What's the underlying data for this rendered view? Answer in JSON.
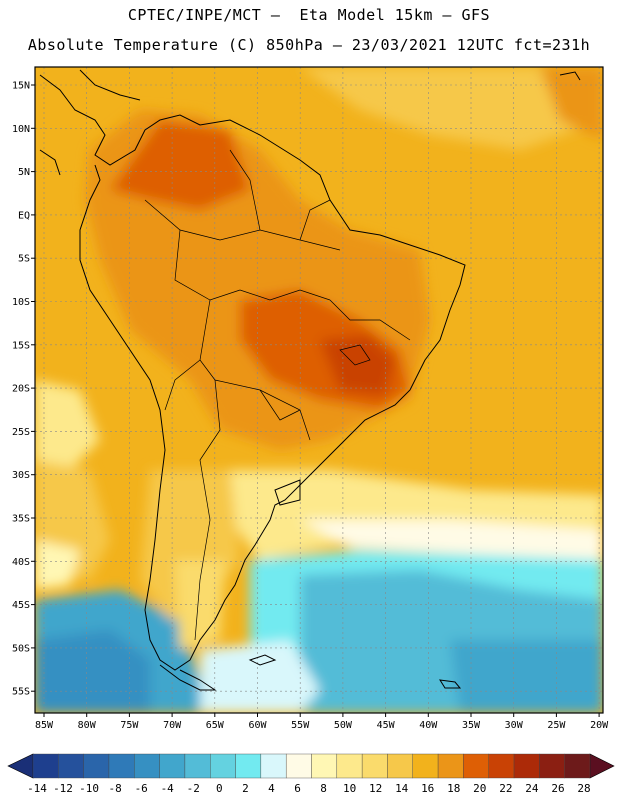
{
  "title_line1": "CPTEC/INPE/MCT –  Eta Model 15km – GFS",
  "title_line2": "Absolute Temperature (C) 850hPa – 23/03/2021 12UTC fct=231h",
  "lat_labels": [
    "15N",
    "10N",
    "5N",
    "EQ",
    "5S",
    "10S",
    "15S",
    "20S",
    "25S",
    "30S",
    "35S",
    "40S",
    "45S",
    "50S",
    "55S"
  ],
  "lon_labels": [
    "85W",
    "80W",
    "75W",
    "70W",
    "65W",
    "60W",
    "55W",
    "50W",
    "45W",
    "40W",
    "35W",
    "30W",
    "25W",
    "20W"
  ],
  "colorbar": {
    "labels": [
      "-14",
      "-12",
      "-10",
      "-8",
      "-6",
      "-4",
      "-2",
      "0",
      "2",
      "4",
      "6",
      "8",
      "10",
      "12",
      "14",
      "16",
      "18",
      "20",
      "22",
      "24",
      "26",
      "28"
    ],
    "colors": [
      "#1e3f8e",
      "#25519c",
      "#2a65aa",
      "#2f7ab8",
      "#3690c2",
      "#41a6cc",
      "#53bcd7",
      "#64d2e0",
      "#72eaf0",
      "#d9f7fb",
      "#fffbe6",
      "#fff7b4",
      "#fde98c",
      "#fadb6c",
      "#f6c84a",
      "#f2b21c",
      "#eb9518",
      "#de5f05",
      "#c94205",
      "#ac2a08",
      "#8b1f12",
      "#6d1a1a"
    ],
    "low_color": "#1a2f77",
    "high_color": "#5a0f20"
  }
}
